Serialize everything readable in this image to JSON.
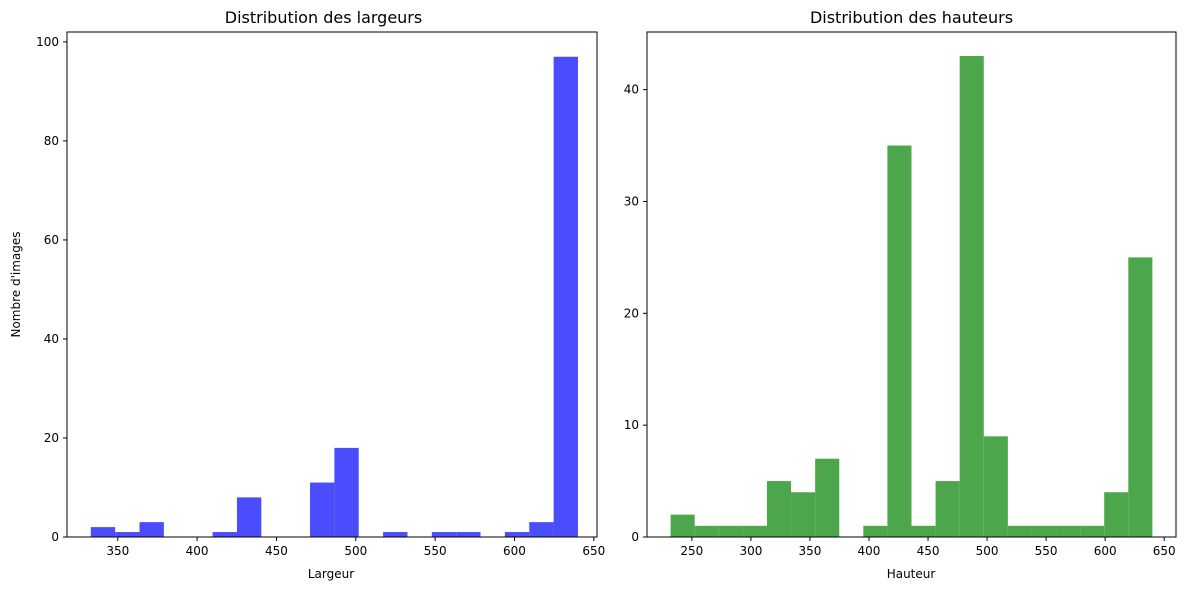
{
  "chart_data": [
    {
      "type": "bar",
      "title": "Distribution des largeurs",
      "xlabel": "Largeur",
      "ylabel": "Nombre d'images",
      "xlim": [
        318,
        652
      ],
      "ylim": [
        0,
        102
      ],
      "xticks": [
        "350",
        "400",
        "450",
        "500",
        "550",
        "600",
        "650"
      ],
      "xtick_values": [
        350,
        400,
        450,
        500,
        550,
        600,
        650
      ],
      "yticks": [
        "0",
        "20",
        "40",
        "60",
        "80",
        "100"
      ],
      "ytick_values": [
        0,
        20,
        40,
        60,
        80,
        100
      ],
      "bin_edges": [
        333.0,
        348.35,
        363.7,
        379.05,
        394.4,
        409.75,
        425.1,
        440.45,
        455.8,
        471.15,
        486.5,
        501.85,
        517.2,
        532.55,
        547.9,
        563.25,
        578.6,
        593.95,
        609.3,
        624.65,
        640.0
      ],
      "values": [
        2,
        1,
        3,
        0,
        0,
        1,
        8,
        0,
        0,
        11,
        18,
        0,
        1,
        0,
        1,
        1,
        0,
        1,
        3,
        97
      ],
      "color": "#4c4cff",
      "grid": false
    },
    {
      "type": "bar",
      "title": "Distribution des hauteurs",
      "xlabel": "Hauteur",
      "ylabel": "",
      "xlim": [
        212,
        660
      ],
      "ylim": [
        0,
        45.15
      ],
      "xticks": [
        "250",
        "300",
        "350",
        "400",
        "450",
        "500",
        "550",
        "600",
        "650"
      ],
      "xtick_values": [
        250,
        300,
        350,
        400,
        450,
        500,
        550,
        600,
        650
      ],
      "yticks": [
        "0",
        "10",
        "20",
        "30",
        "40"
      ],
      "ytick_values": [
        0,
        10,
        20,
        30,
        40
      ],
      "bin_edges": [
        232.0,
        252.4,
        272.8,
        293.2,
        313.6,
        334.0,
        354.4,
        374.8,
        395.2,
        415.6,
        436.0,
        456.4,
        476.8,
        497.2,
        517.6,
        538.0,
        558.4,
        578.8,
        599.2,
        619.6,
        640.0
      ],
      "values": [
        2,
        1,
        1,
        1,
        5,
        4,
        7,
        0,
        1,
        35,
        1,
        5,
        43,
        9,
        1,
        1,
        1,
        1,
        4,
        25
      ],
      "color": "#4ca64c",
      "grid": false
    }
  ]
}
